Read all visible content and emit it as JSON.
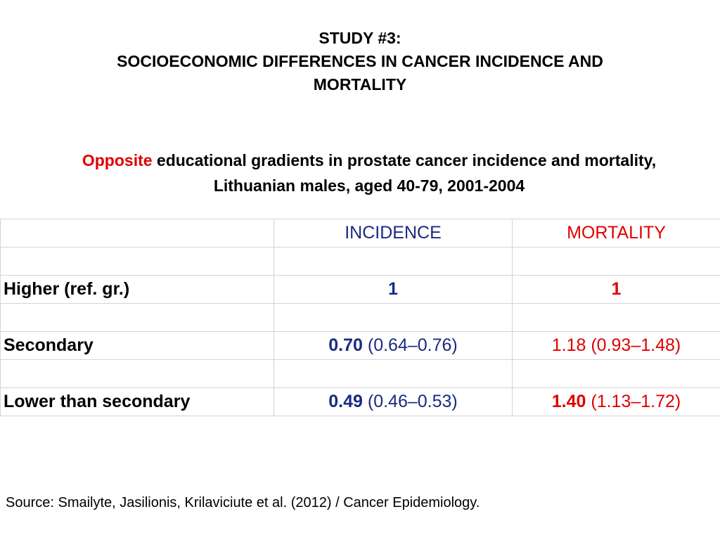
{
  "title": {
    "line1": "STUDY #3:",
    "line2": "SOCIOECONOMIC DIFFERENCES IN CANCER INCIDENCE AND",
    "line3": "MORTALITY"
  },
  "subtitle": {
    "accent": "Opposite",
    "text": "educational gradients in prostate cancer incidence and mortality, Lithuanian males, aged 40-79, 2001-2004"
  },
  "table": {
    "headers": {
      "incidence": "INCIDENCE",
      "mortality": "MORTALITY"
    },
    "rows": [
      {
        "label": "Higher (ref. gr.)",
        "incidence_value": "1",
        "incidence_ci": "",
        "mortality_value": "1",
        "mortality_ci": ""
      },
      {
        "label": "Secondary",
        "incidence_value": "0.70",
        "incidence_ci": "(0.64–0.76)",
        "mortality_value": "1.18 (0.93–1.48)",
        "mortality_ci": ""
      },
      {
        "label": "Lower than secondary",
        "incidence_value": "0.49",
        "incidence_ci": "(0.46–0.53)",
        "mortality_value": "1.40",
        "mortality_ci": "(1.13–1.72)"
      }
    ]
  },
  "source": "Source: Smailyte, Jasilionis, Krilaviciute et al. (2012) / Cancer Epidemiology.",
  "colors": {
    "accent_red": "#e00000",
    "incidence_blue": "#1a2b80",
    "grid": "#d4d4d4"
  }
}
